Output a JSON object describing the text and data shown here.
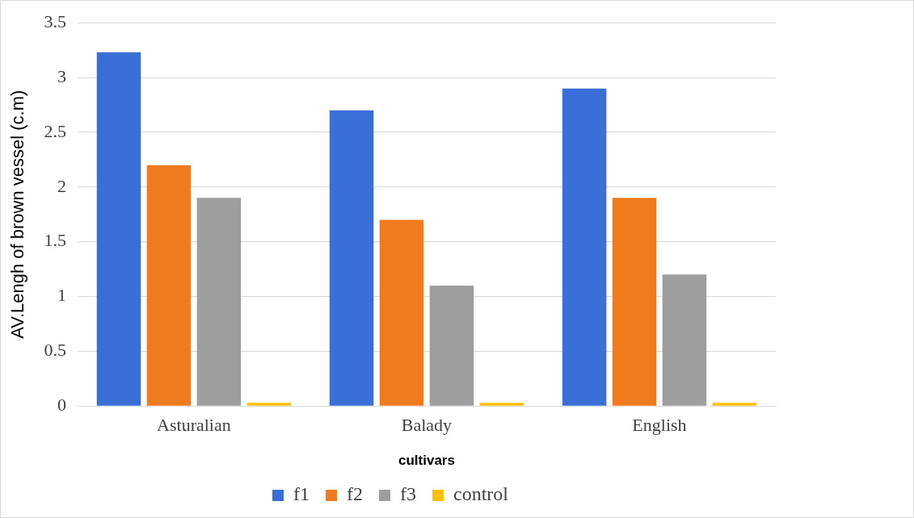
{
  "chart_data": {
    "type": "bar",
    "xlabel": "cultivars",
    "ylabel": "AV.Lengh of brown vessel (c.m)",
    "categories": [
      "Asturalian",
      "Balady",
      "English"
    ],
    "series": [
      {
        "name": "f1",
        "color": "#3a6fd8",
        "values": [
          3.23,
          2.7,
          2.9
        ]
      },
      {
        "name": "f2",
        "color": "#f07a1e",
        "values": [
          2.2,
          1.7,
          1.9
        ]
      },
      {
        "name": "f3",
        "color": "#9e9e9e",
        "values": [
          1.9,
          1.1,
          1.2
        ]
      },
      {
        "name": "control",
        "color": "#ffc000",
        "values": [
          0.03,
          0.03,
          0.03
        ]
      }
    ],
    "ylim": [
      0,
      3.5
    ],
    "yticks": [
      0,
      0.5,
      1,
      1.5,
      2,
      2.5,
      3,
      3.5
    ],
    "grid": "y",
    "legend": "bottom"
  }
}
